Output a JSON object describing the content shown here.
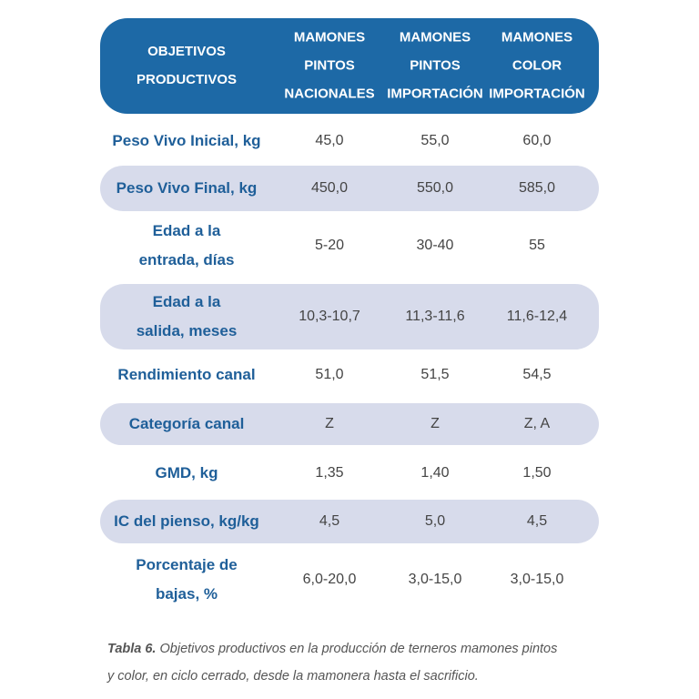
{
  "table": {
    "headers": [
      [
        "OBJETIVOS",
        "PRODUCTIVOS"
      ],
      [
        "MAMONES",
        "PINTOS",
        "NACIONALES"
      ],
      [
        "MAMONES",
        "PINTOS",
        "IMPORTACIÓN"
      ],
      [
        "MAMONES",
        "COLOR",
        "IMPORTACIÓN"
      ]
    ],
    "rows": [
      {
        "label": [
          "Peso Vivo Inicial, kg"
        ],
        "values": [
          "45,0",
          "55,0",
          "60,0"
        ]
      },
      {
        "label": [
          "Peso Vivo Final, kg"
        ],
        "values": [
          "450,0",
          "550,0",
          "585,0"
        ]
      },
      {
        "label": [
          "Edad a la",
          "entrada, días"
        ],
        "values": [
          "5-20",
          "30-40",
          "55"
        ]
      },
      {
        "label": [
          "Edad a la",
          "salida, meses"
        ],
        "values": [
          "10,3-10,7",
          "11,3-11,6",
          "11,6-12,4"
        ]
      },
      {
        "label": [
          "Rendimiento canal"
        ],
        "values": [
          "51,0",
          "51,5",
          "54,5"
        ]
      },
      {
        "label": [
          "Categoría canal"
        ],
        "values": [
          "Z",
          "Z",
          "Z, A"
        ]
      },
      {
        "label": [
          "GMD, kg"
        ],
        "values": [
          "1,35",
          "1,40",
          "1,50"
        ]
      },
      {
        "label": [
          "IC del pienso, kg/kg"
        ],
        "values": [
          "4,5",
          "5,0",
          "4,5"
        ]
      },
      {
        "label": [
          "Porcentaje de",
          "bajas, %"
        ],
        "values": [
          "6,0-20,0",
          "3,0-15,0",
          "3,0-15,0"
        ]
      }
    ]
  },
  "caption": {
    "label": "Tabla 6.",
    "text": "Objetivos productivos en la producción de terneros mamones pintos y color, en ciclo cerrado, desde la mamonera hasta el sacrificio."
  }
}
